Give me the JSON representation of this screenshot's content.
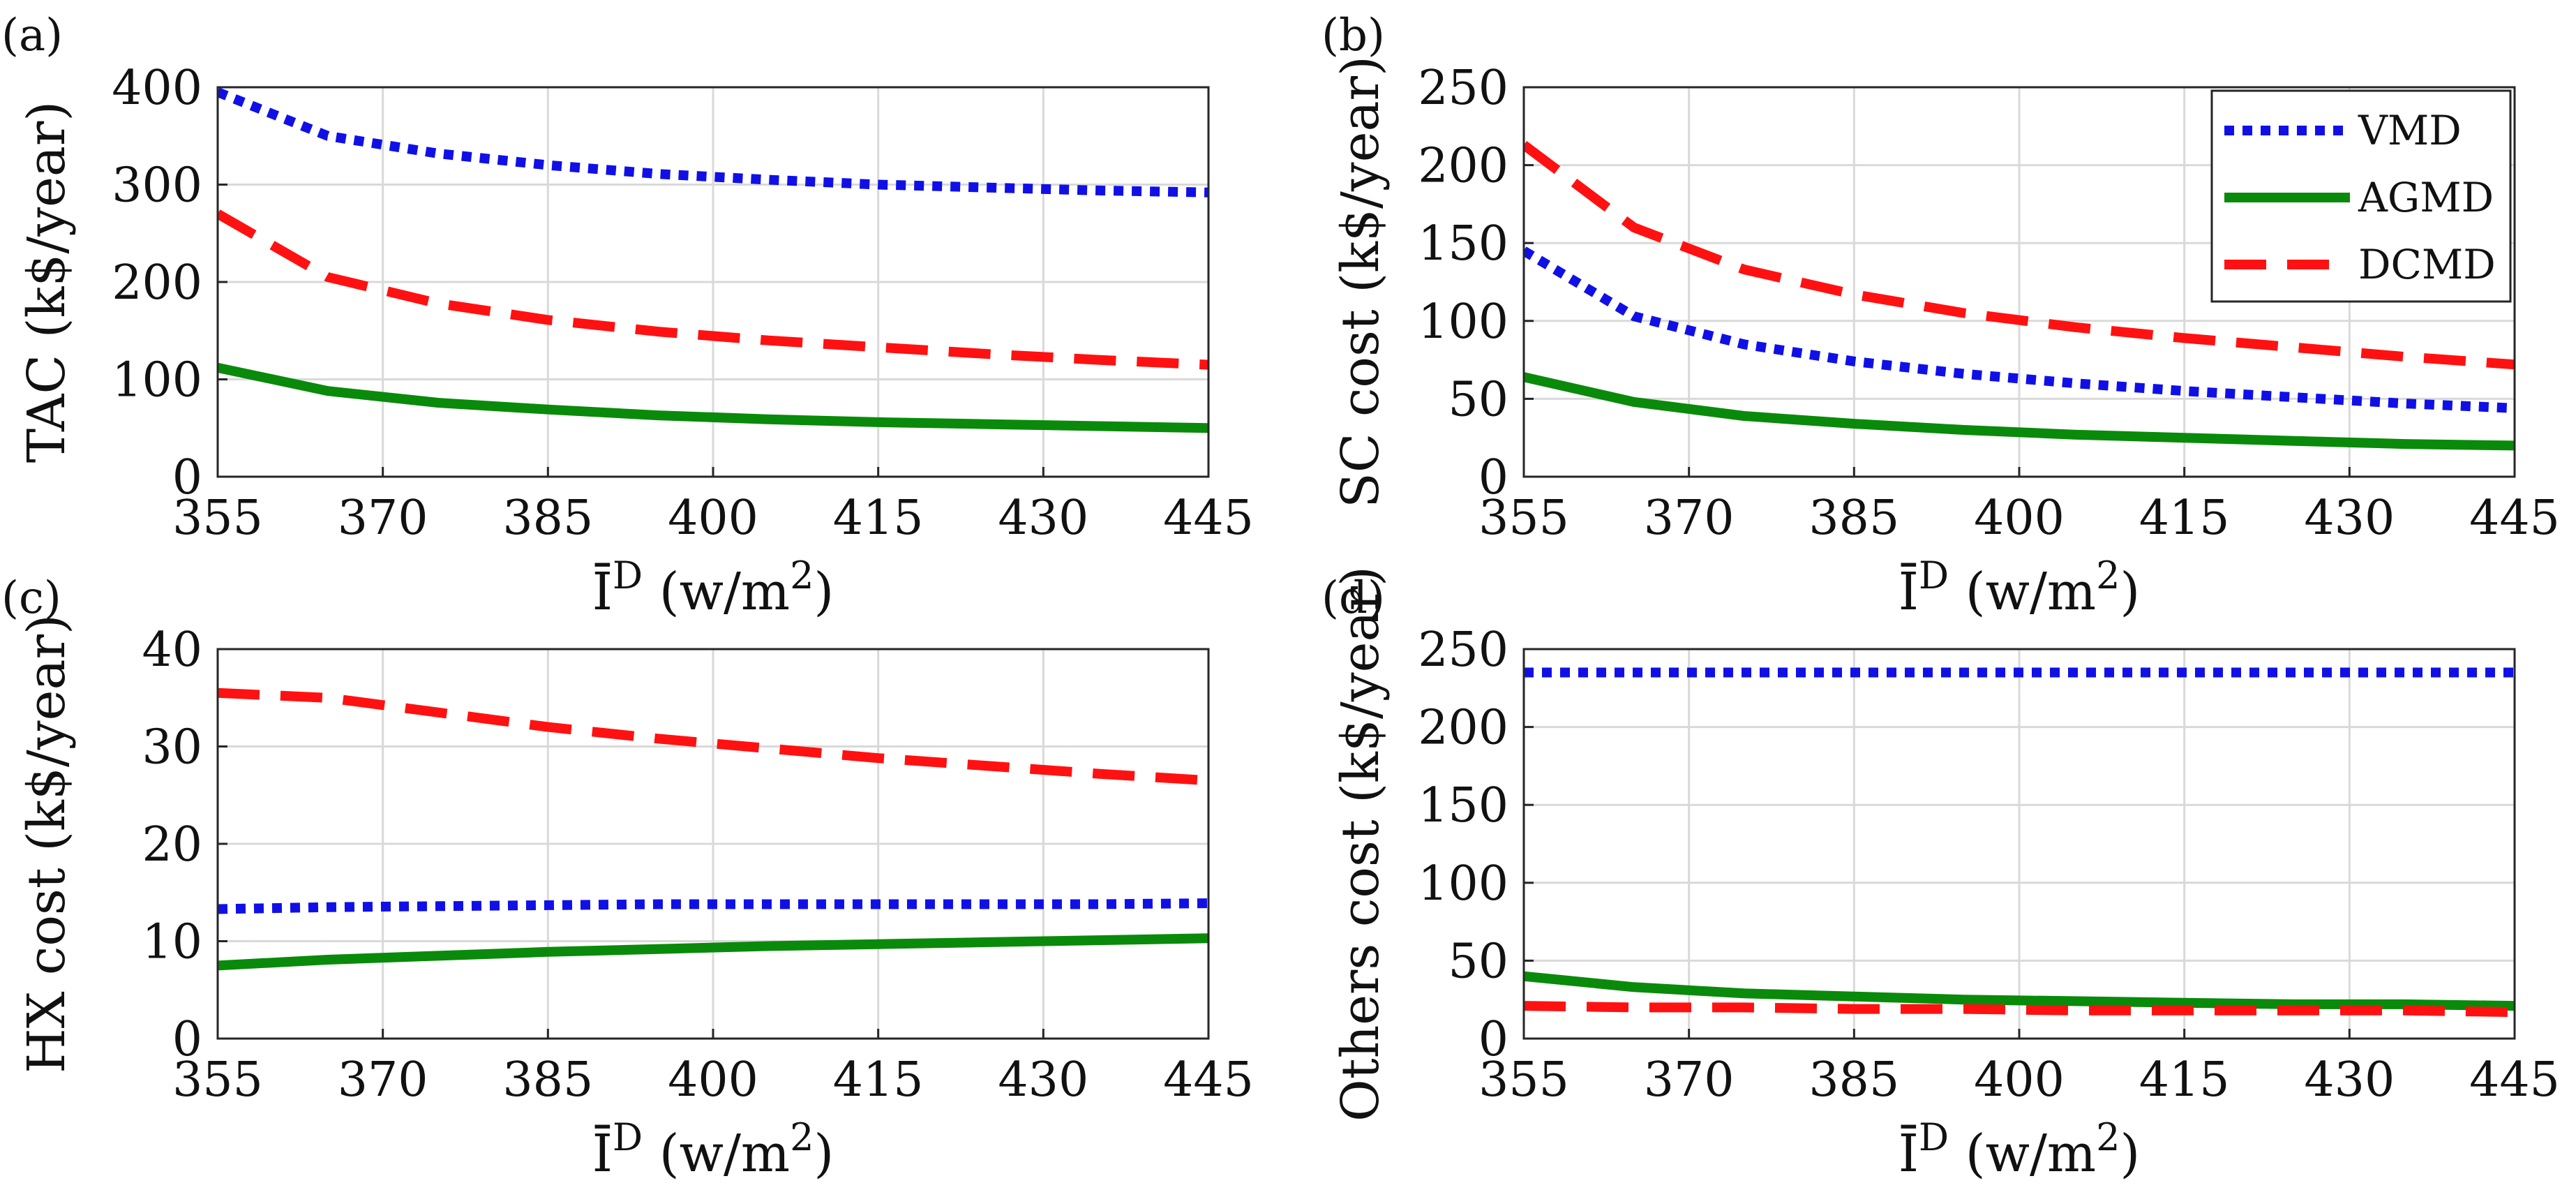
{
  "colors": {
    "VMD": "#1010e6",
    "AGMD": "#0a8a0a",
    "DCMD": "#ff1111",
    "grid": "#d9d9d9",
    "axis": "#262626"
  },
  "legend": [
    "VMD",
    "AGMD",
    "DCMD"
  ],
  "chart_data": [
    {
      "type": "line",
      "panel_label": "(a)",
      "ylabel": "TAC (k$/year)",
      "xlabel": {
        "base": "Ī",
        "sup1": "D",
        "unit": "(w/m",
        "sup2": "2",
        "close": ")"
      },
      "xlim": [
        355,
        445
      ],
      "ylim": [
        0,
        400
      ],
      "x_ticks": [
        355,
        370,
        385,
        400,
        415,
        430,
        445
      ],
      "x_tick_labels": [
        "355",
        "370",
        "385",
        "400",
        "415",
        "430",
        "445"
      ],
      "y_ticks": [
        0,
        100,
        200,
        300,
        400
      ],
      "y_tick_labels": [
        "0",
        "100",
        "200",
        "300",
        "400"
      ],
      "x": [
        355,
        365,
        375,
        385,
        395,
        405,
        415,
        425,
        435,
        445
      ],
      "series": [
        {
          "name": "VMD",
          "values": [
            395,
            350,
            332,
            320,
            311,
            305,
            300,
            297,
            294,
            292
          ]
        },
        {
          "name": "AGMD",
          "values": [
            112,
            88,
            76,
            69,
            63,
            59,
            56,
            54,
            52,
            50
          ]
        },
        {
          "name": "DCMD",
          "values": [
            270,
            205,
            178,
            161,
            149,
            140,
            133,
            126,
            120,
            115
          ]
        }
      ]
    },
    {
      "type": "line",
      "panel_label": "(b)",
      "ylabel": "SC cost (k$/year)",
      "xlabel": {
        "base": "Ī",
        "sup1": "D",
        "unit": "(w/m",
        "sup2": "2",
        "close": ")"
      },
      "xlim": [
        355,
        445
      ],
      "ylim": [
        0,
        250
      ],
      "x_ticks": [
        355,
        370,
        385,
        400,
        415,
        430,
        445
      ],
      "x_tick_labels": [
        "355",
        "370",
        "385",
        "400",
        "415",
        "430",
        "445"
      ],
      "y_ticks": [
        0,
        50,
        100,
        150,
        200,
        250
      ],
      "y_tick_labels": [
        "0",
        "50",
        "100",
        "150",
        "200",
        "250"
      ],
      "x": [
        355,
        365,
        375,
        385,
        395,
        405,
        415,
        425,
        435,
        445
      ],
      "series": [
        {
          "name": "VMD",
          "values": [
            145,
            103,
            85,
            74,
            66,
            60,
            55,
            51,
            47,
            44
          ]
        },
        {
          "name": "AGMD",
          "values": [
            64,
            48,
            39,
            34,
            30,
            27,
            25,
            23,
            21,
            20
          ]
        },
        {
          "name": "DCMD",
          "values": [
            213,
            160,
            133,
            117,
            105,
            96,
            89,
            83,
            77,
            72
          ]
        }
      ]
    },
    {
      "type": "line",
      "panel_label": "(c)",
      "ylabel": "HX cost (k$/year)",
      "xlabel": {
        "base": "Ī",
        "sup1": "D",
        "unit": "(w/m",
        "sup2": "2",
        "close": ")"
      },
      "xlim": [
        355,
        445
      ],
      "ylim": [
        0,
        40
      ],
      "x_ticks": [
        355,
        370,
        385,
        400,
        415,
        430,
        445
      ],
      "x_tick_labels": [
        "355",
        "370",
        "385",
        "400",
        "415",
        "430",
        "445"
      ],
      "y_ticks": [
        0,
        10,
        20,
        30,
        40
      ],
      "y_tick_labels": [
        "0",
        "10",
        "20",
        "30",
        "40"
      ],
      "x": [
        355,
        365,
        375,
        385,
        395,
        405,
        415,
        425,
        435,
        445
      ],
      "series": [
        {
          "name": "VMD",
          "values": [
            13.3,
            13.5,
            13.6,
            13.7,
            13.8,
            13.8,
            13.8,
            13.8,
            13.8,
            13.9
          ]
        },
        {
          "name": "AGMD",
          "values": [
            7.5,
            8.1,
            8.5,
            8.9,
            9.2,
            9.5,
            9.7,
            9.9,
            10.1,
            10.3
          ]
        },
        {
          "name": "DCMD",
          "values": [
            35.5,
            35,
            33.5,
            32,
            30.8,
            29.8,
            28.8,
            28,
            27.2,
            26.5
          ]
        }
      ]
    },
    {
      "type": "line",
      "panel_label": "(d)",
      "ylabel": "Others cost (k$/year)",
      "xlabel": {
        "base": "Ī",
        "sup1": "D",
        "unit": "(w/m",
        "sup2": "2",
        "close": ")"
      },
      "xlim": [
        355,
        445
      ],
      "ylim": [
        0,
        250
      ],
      "x_ticks": [
        355,
        370,
        385,
        400,
        415,
        430,
        445
      ],
      "x_tick_labels": [
        "355",
        "370",
        "385",
        "400",
        "415",
        "430",
        "445"
      ],
      "y_ticks": [
        0,
        50,
        100,
        150,
        200,
        250
      ],
      "y_tick_labels": [
        "0",
        "50",
        "100",
        "150",
        "200",
        "250"
      ],
      "x": [
        355,
        365,
        375,
        385,
        395,
        405,
        415,
        425,
        435,
        445
      ],
      "series": [
        {
          "name": "VMD",
          "values": [
            235,
            235,
            235,
            235,
            235,
            235,
            235,
            235,
            235,
            235
          ]
        },
        {
          "name": "AGMD",
          "values": [
            40,
            33,
            29,
            27,
            25,
            24,
            23,
            22,
            22,
            21
          ]
        },
        {
          "name": "DCMD",
          "values": [
            21,
            20,
            20,
            19,
            19,
            18,
            18,
            18,
            18,
            17
          ]
        }
      ]
    }
  ]
}
